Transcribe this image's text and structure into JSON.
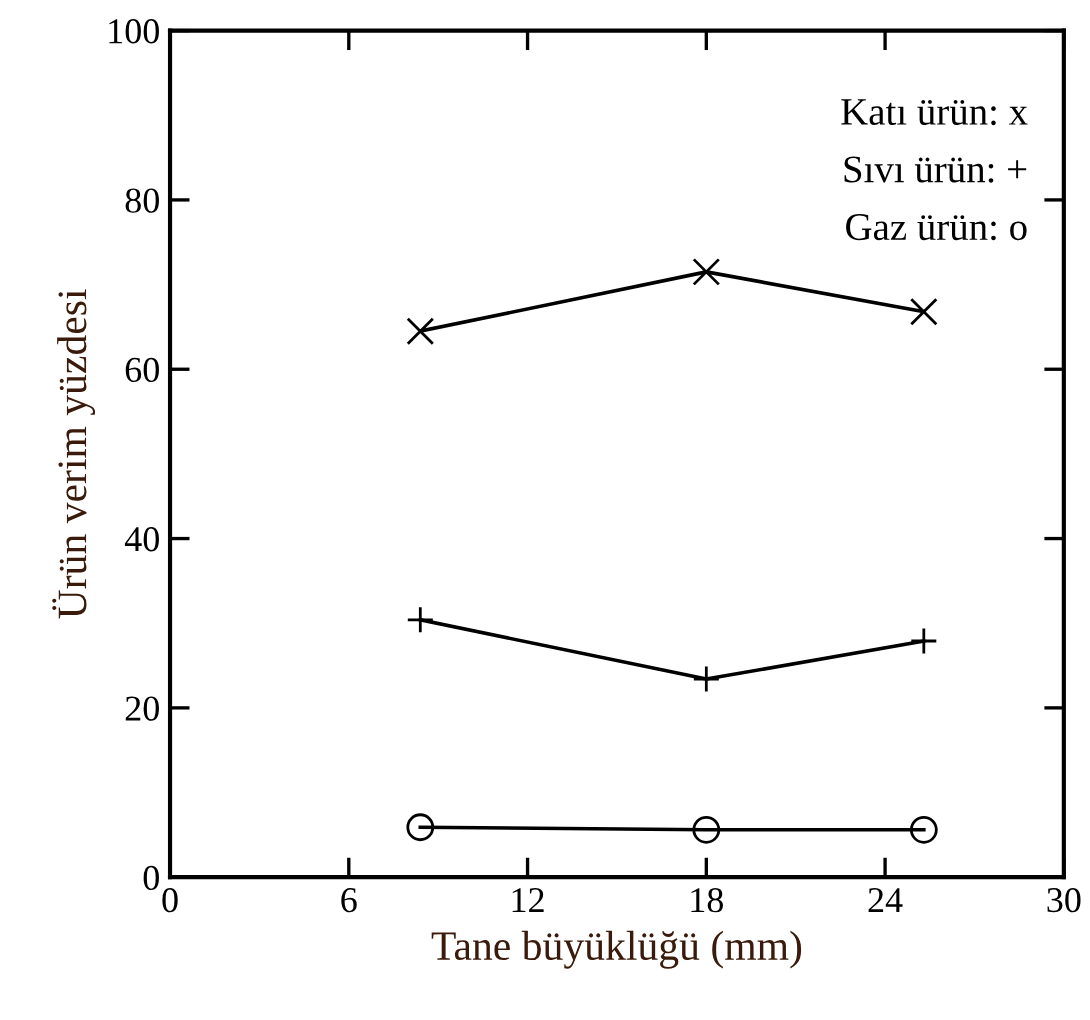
{
  "chart_data": {
    "type": "line",
    "xlabel": "Tane büyüklüğü (mm)",
    "ylabel": "Ürün verim yüzdesi",
    "x": [
      8.4,
      18,
      25.3
    ],
    "series": [
      {
        "color": "#000000",
        "marker": "cross",
        "values": [
          64.5,
          71.5,
          66.8
        ]
      },
      {
        "color": "#000000",
        "marker": "plus",
        "values": [
          30.4,
          23.4,
          27.9
        ]
      },
      {
        "color": "#000000",
        "marker": "circle",
        "values": [
          5.9,
          5.6,
          5.6
        ]
      }
    ],
    "annotations": [
      "Katı ürün: x",
      "Sıvı ürün: +",
      "Gaz ürün: o"
    ],
    "xlim": [
      0,
      30
    ],
    "xticks": [
      0,
      6,
      12,
      18,
      24,
      30
    ],
    "ylim": [
      0,
      100
    ],
    "yticks": [
      0,
      20,
      40,
      60,
      80,
      100
    ],
    "grid": false,
    "legend": false,
    "line_style": "solid"
  }
}
